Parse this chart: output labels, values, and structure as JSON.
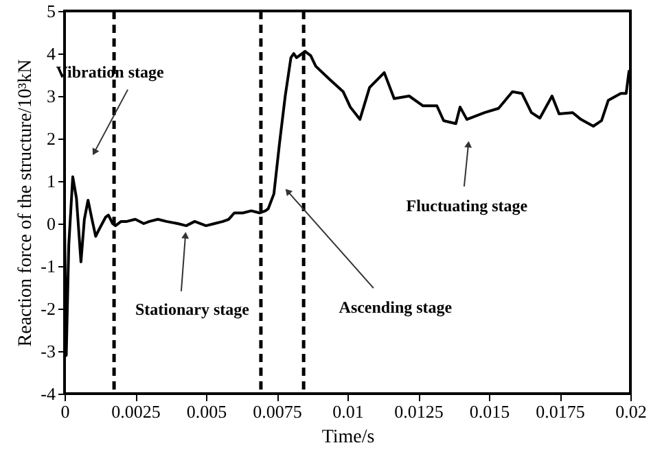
{
  "chart_data": {
    "type": "line",
    "xlabel": "Time/s",
    "ylabel": "Reaction force of the structure/10³kN",
    "x": [
      0,
      6e-05,
      0.00015,
      0.00029,
      0.00042,
      0.00058,
      0.0007,
      0.00083,
      0.00097,
      0.0011,
      0.00125,
      0.00145,
      0.00155,
      0.0017,
      0.0018,
      0.002,
      0.0022,
      0.0025,
      0.0028,
      0.003,
      0.0033,
      0.0036,
      0.004,
      0.0043,
      0.0046,
      0.005,
      0.0053,
      0.0056,
      0.0058,
      0.006,
      0.0063,
      0.0066,
      0.0069,
      0.0071,
      0.0072,
      0.0074,
      0.0076,
      0.0078,
      0.008,
      0.0081,
      0.0082,
      0.0085,
      0.0087,
      0.00888,
      0.00937,
      0.00985,
      0.0101,
      0.01044,
      0.01078,
      0.0113,
      0.01165,
      0.01218,
      0.01267,
      0.01316,
      0.0134,
      0.01383,
      0.01398,
      0.01422,
      0.01485,
      0.01534,
      0.01583,
      0.01617,
      0.0165,
      0.0168,
      0.01723,
      0.01748,
      0.01796,
      0.01825,
      0.01869,
      0.01898,
      0.01922,
      0.01966,
      0.01985,
      0.01995,
      0.02
    ],
    "values": [
      0,
      -3.1,
      -0.5,
      1.1,
      0.6,
      -0.9,
      0.1,
      0.55,
      0.1,
      -0.3,
      -0.1,
      0.15,
      0.2,
      0.0,
      -0.05,
      0.05,
      0.05,
      0.1,
      0.0,
      0.05,
      0.1,
      0.05,
      0.0,
      -0.05,
      0.05,
      -0.05,
      0.0,
      0.05,
      0.1,
      0.25,
      0.25,
      0.3,
      0.25,
      0.3,
      0.35,
      0.7,
      1.9,
      3.0,
      3.9,
      4.0,
      3.9,
      4.05,
      3.95,
      3.7,
      3.39,
      3.1,
      2.74,
      2.45,
      3.2,
      3.55,
      2.94,
      3.0,
      2.77,
      2.77,
      2.42,
      2.35,
      2.74,
      2.45,
      2.61,
      2.71,
      3.1,
      3.06,
      2.61,
      2.48,
      3.0,
      2.58,
      2.61,
      2.45,
      2.29,
      2.42,
      2.9,
      3.06,
      3.06,
      3.58,
      3.6
    ],
    "color": "#000000",
    "line_style": "solid",
    "marker": "none",
    "xlim": [
      0,
      0.02
    ],
    "xticks": [
      0,
      0.0025,
      0.005,
      0.0075,
      0.01,
      0.0125,
      0.015,
      0.0175,
      0.02
    ],
    "ylim": [
      -4,
      5
    ],
    "yticks": [
      -4,
      -3,
      -2,
      -1,
      0,
      1,
      2,
      3,
      4,
      5
    ],
    "grid": false,
    "ref_lines": [
      {
        "axis": "x",
        "value": 0.00175,
        "color": "#000000",
        "line_style": "dashed"
      },
      {
        "axis": "x",
        "value": 0.00694,
        "color": "#000000",
        "line_style": "dashed"
      },
      {
        "axis": "x",
        "value": 0.00845,
        "color": "#000000",
        "line_style": "dashed"
      }
    ],
    "annotations": [
      {
        "text": "Vibration stage",
        "x": 0.00107,
        "y": 1.7
      },
      {
        "text": "Stationary stage",
        "x": 0.00427,
        "y": -0.3
      },
      {
        "text": "Ascending stage",
        "x": 0.00791,
        "y": 0.74
      },
      {
        "text": "Fluctuating stage",
        "x": 0.01427,
        "y": 1.84
      }
    ]
  }
}
